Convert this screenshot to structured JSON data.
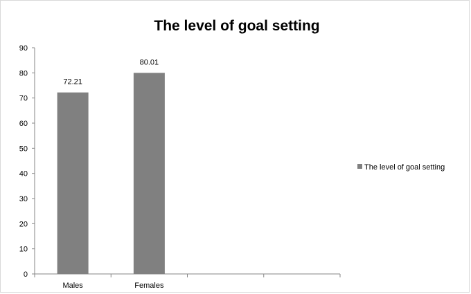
{
  "chart_data": {
    "type": "bar",
    "title": "The level of goal setting",
    "xlabel": "",
    "ylabel": "",
    "categories": [
      "Males",
      "Females",
      "",
      ""
    ],
    "series": [
      {
        "name": "The level of goal setting",
        "values": [
          72.21,
          80.01,
          null,
          null
        ],
        "data_labels": [
          "72.21",
          "80.01",
          "",
          ""
        ],
        "color": "#808080"
      }
    ],
    "ylim": [
      0,
      90
    ],
    "yticks": [
      0,
      10,
      20,
      30,
      40,
      50,
      60,
      70,
      80,
      90
    ],
    "grid": false,
    "legend_position": "right"
  }
}
